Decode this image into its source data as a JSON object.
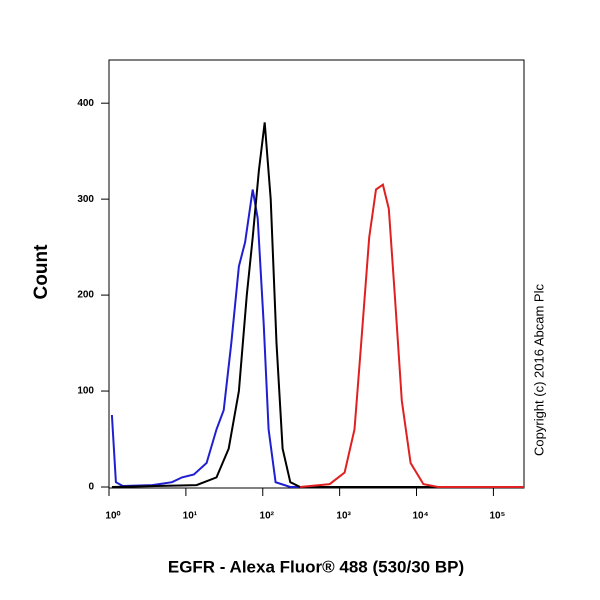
{
  "chart_data": {
    "type": "line",
    "title": null,
    "ylabel": "Count",
    "xlabel": "EGFR - Alexa Fluor® 488 (530/30 BP)",
    "annotation": "Copyright (c) 2016 Abcam Plc",
    "xscale": "log",
    "xlim": [
      1,
      250000
    ],
    "ylim": [
      0,
      445
    ],
    "xticks": [
      {
        "value": 1,
        "label": "10⁰"
      },
      {
        "value": 10,
        "label": "10¹"
      },
      {
        "value": 100,
        "label": "10²"
      },
      {
        "value": 1000,
        "label": "10³"
      },
      {
        "value": 10000,
        "label": "10⁴"
      },
      {
        "value": 100000,
        "label": "10⁵"
      }
    ],
    "yticks": [
      0,
      100,
      200,
      300,
      400
    ],
    "series": [
      {
        "color": "#1f1fd0",
        "x": [
          1.09,
          1.23,
          1.51,
          3.66,
          6.6,
          8.9,
          12.7,
          18.6,
          25,
          31,
          39,
          49,
          59,
          74,
          86,
          103,
          119,
          147,
          228,
          250000
        ],
        "values": [
          75,
          5,
          1,
          2,
          5,
          10,
          13,
          25,
          60,
          80,
          150,
          230,
          255,
          310,
          280,
          170,
          60,
          5,
          0,
          0
        ]
      },
      {
        "color": "#000000",
        "x": [
          1.09,
          13.8,
          25,
          36,
          49,
          62,
          74,
          89,
          106,
          127,
          151,
          181,
          228,
          306,
          250000
        ],
        "values": [
          0,
          2,
          10,
          40,
          100,
          200,
          260,
          330,
          380,
          300,
          150,
          40,
          5,
          0,
          0
        ]
      },
      {
        "color": "#e02020",
        "x": [
          306,
          742,
          1160,
          1560,
          1910,
          2420,
          2970,
          3650,
          4360,
          5210,
          6430,
          8380,
          12300,
          19000,
          250000
        ],
        "values": [
          0,
          3,
          15,
          60,
          150,
          260,
          310,
          315,
          290,
          200,
          90,
          25,
          3,
          0,
          0
        ]
      }
    ]
  }
}
